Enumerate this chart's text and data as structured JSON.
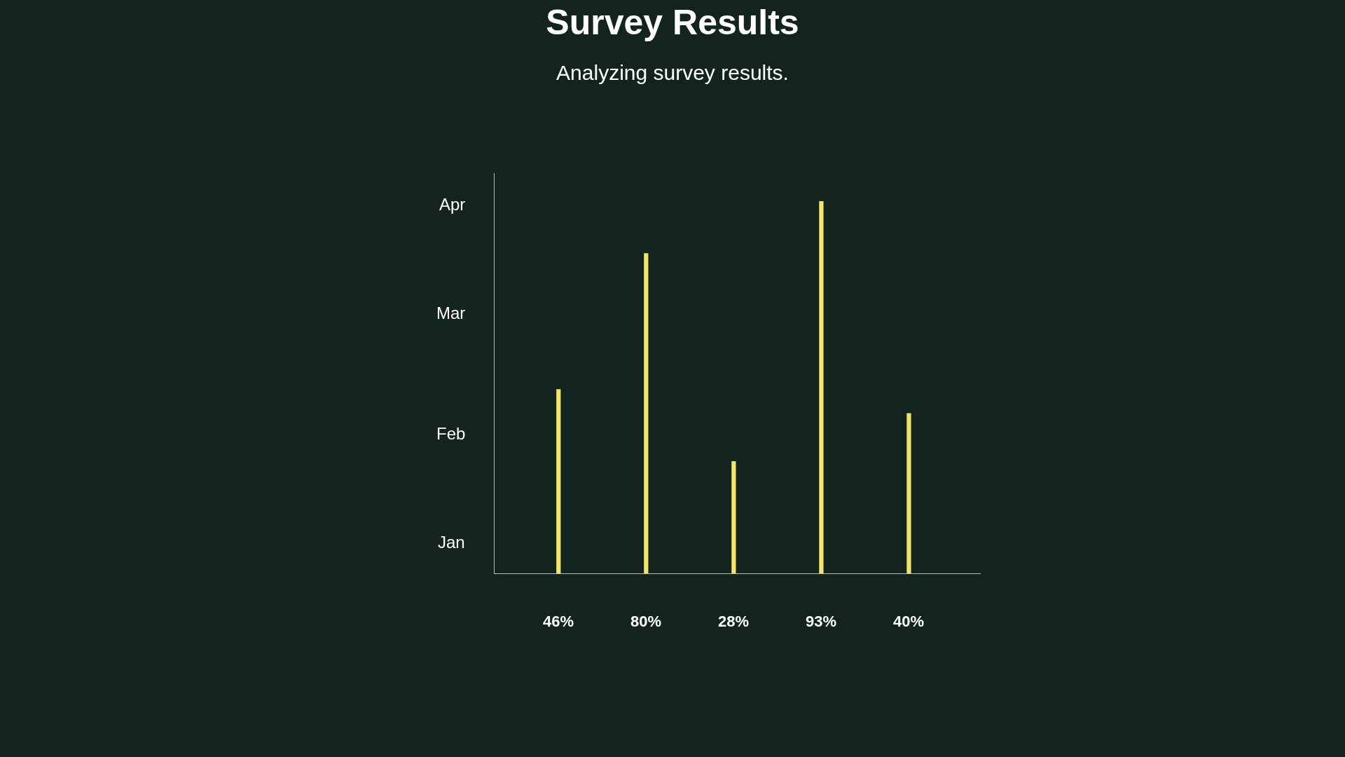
{
  "chart_data": {
    "type": "bar",
    "title": "Survey Results",
    "subtitle": "Analyzing survey results.",
    "categories": [
      null,
      null,
      null,
      null,
      null
    ],
    "values": [
      46,
      80,
      28,
      93,
      40
    ],
    "value_labels": [
      "46%",
      "80%",
      "28%",
      "93%",
      "40%"
    ],
    "color": "#f2e66a",
    "ylim": [
      0,
      100
    ],
    "annotations": [
      "Jan",
      "Feb",
      "Mar",
      "Apr"
    ],
    "grid": false,
    "legend": false
  }
}
